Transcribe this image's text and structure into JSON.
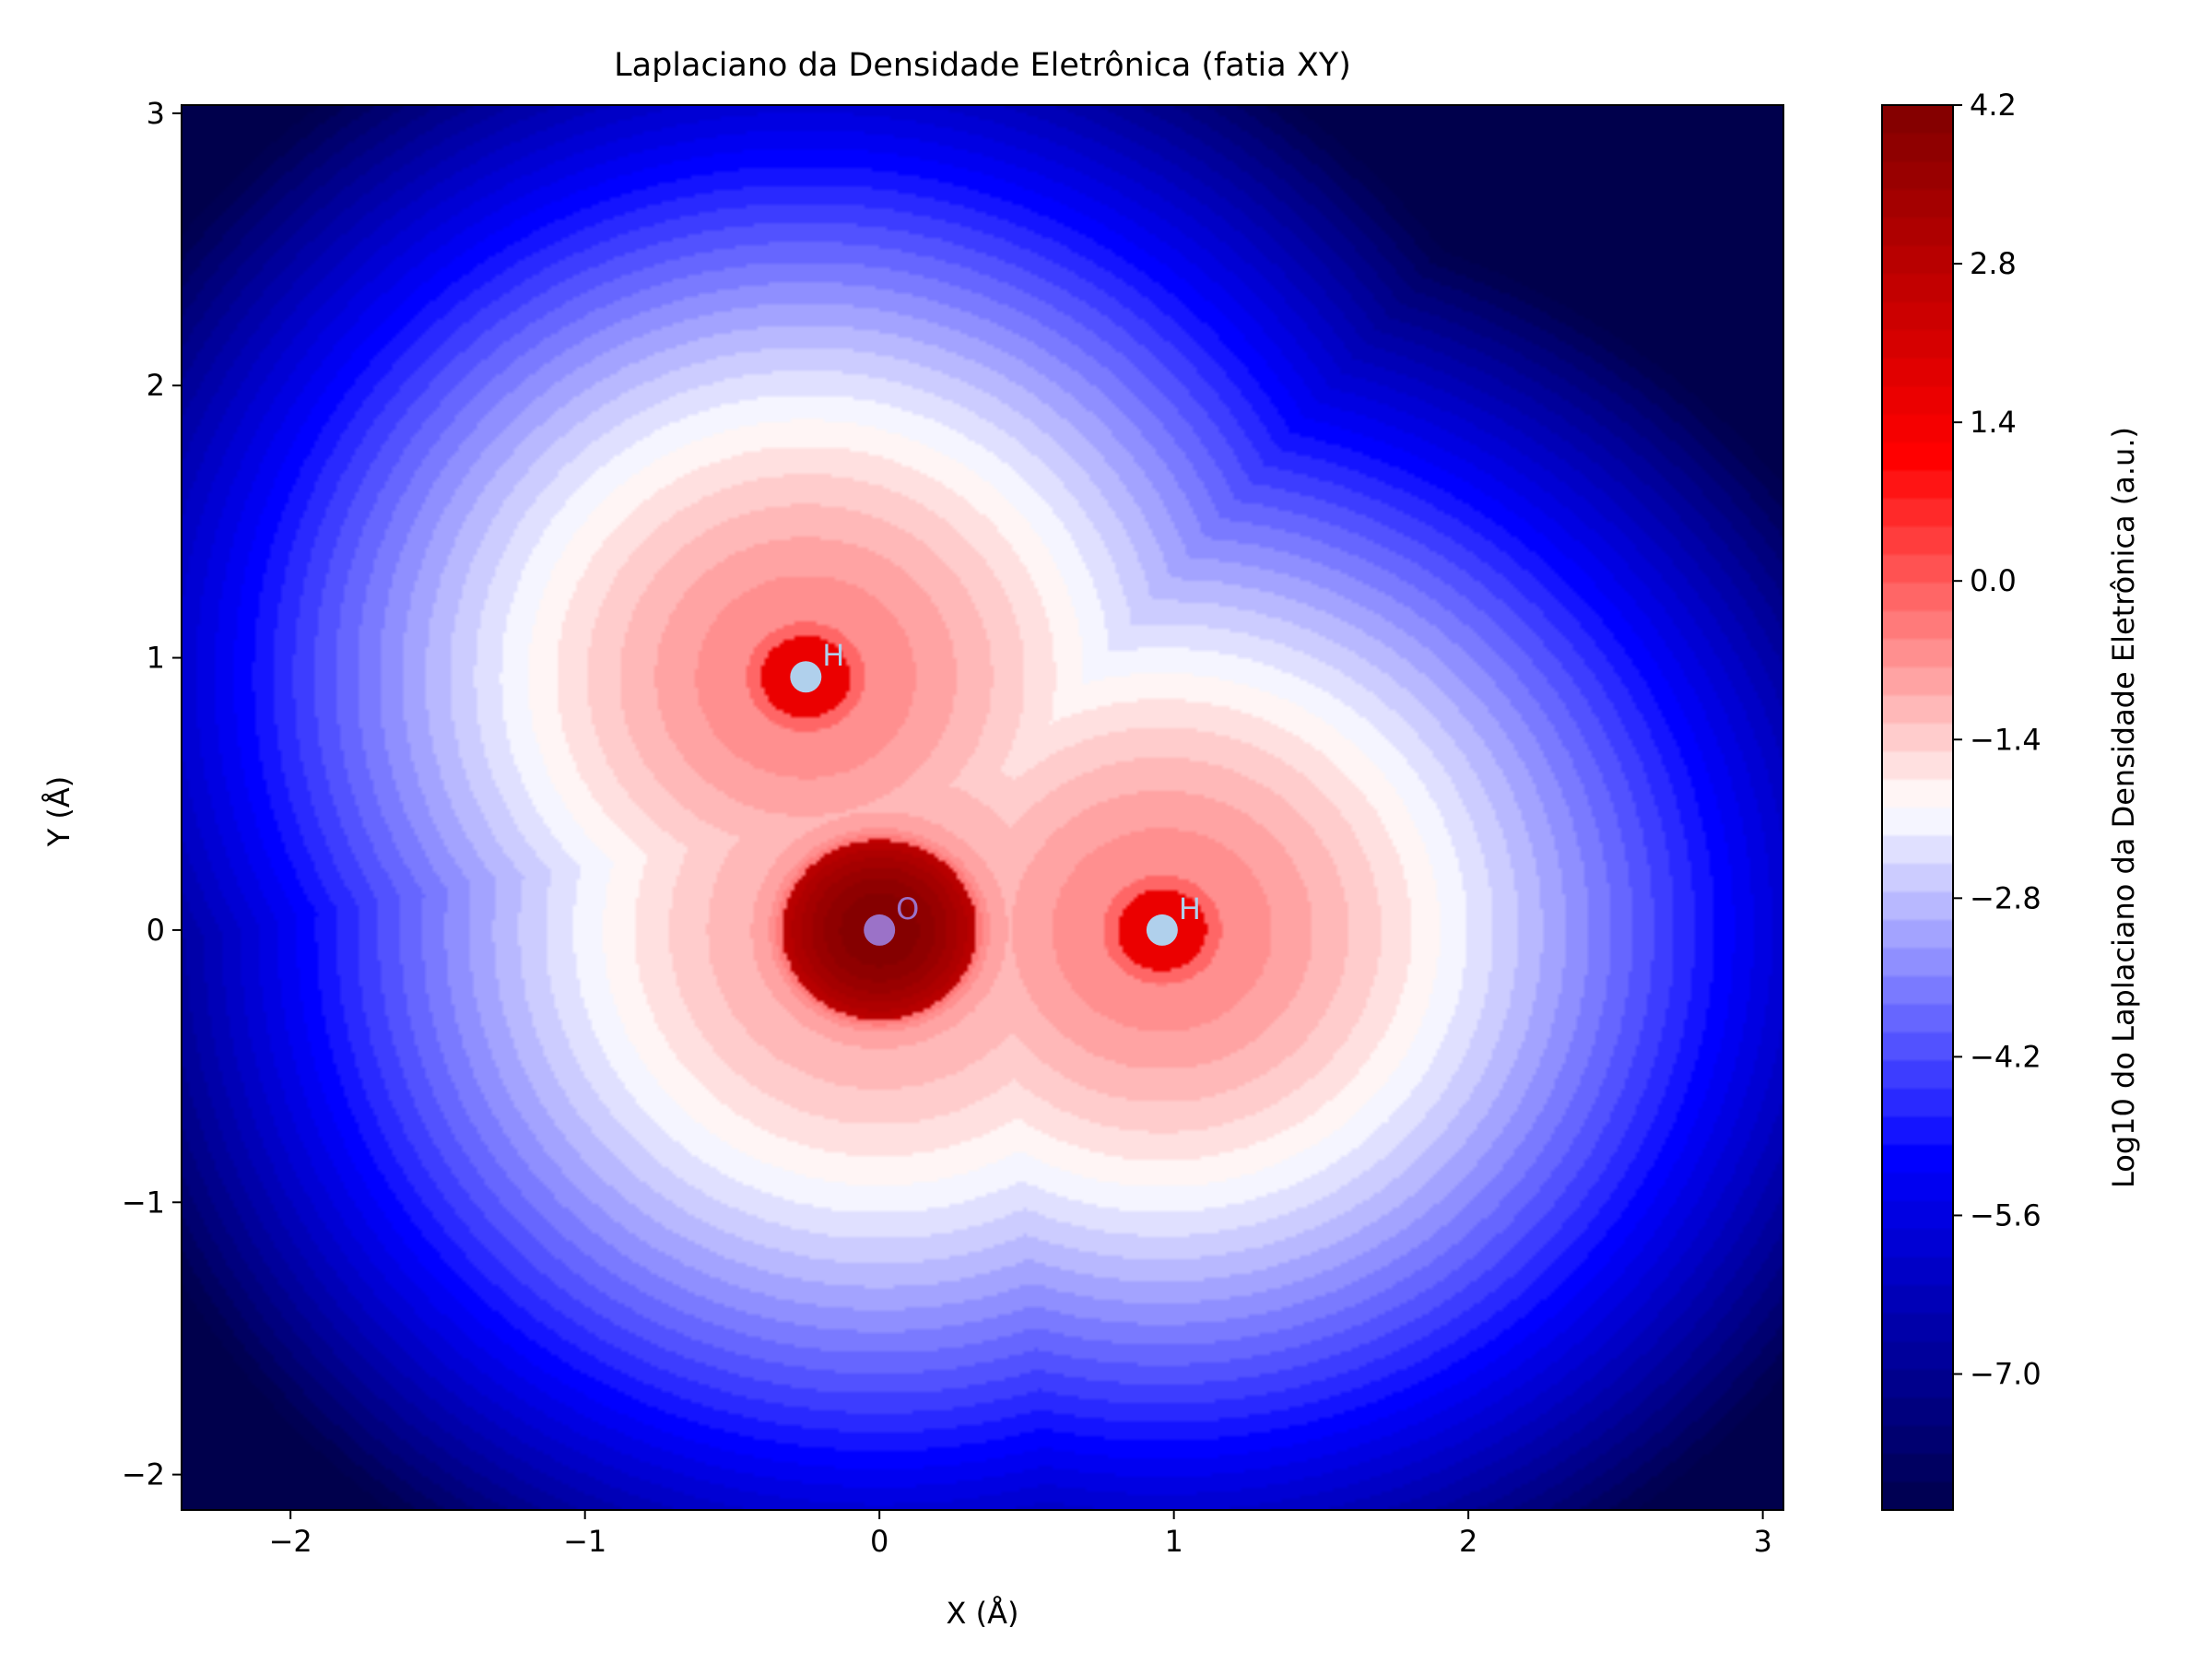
{
  "chart_data": {
    "type": "heatmap",
    "title": "Laplaciano da Densidade Eletrônica (fatia XY)",
    "xlabel": "X (Å)",
    "ylabel": "Y (Å)",
    "xlim": [
      -2.37,
      3.07
    ],
    "ylim": [
      -2.13,
      3.03
    ],
    "xticks": [
      {
        "value": -2,
        "label": "−2"
      },
      {
        "value": -1,
        "label": "−1"
      },
      {
        "value": 0,
        "label": "0"
      },
      {
        "value": 1,
        "label": "1"
      },
      {
        "value": 2,
        "label": "2"
      },
      {
        "value": 3,
        "label": "3"
      }
    ],
    "yticks": [
      {
        "value": -2,
        "label": "−2"
      },
      {
        "value": -1,
        "label": "−1"
      },
      {
        "value": 0,
        "label": "0"
      },
      {
        "value": 1,
        "label": "1"
      },
      {
        "value": 2,
        "label": "2"
      },
      {
        "value": 3,
        "label": "3"
      }
    ],
    "colorbar": {
      "label": "Log10 do Laplaciano da Densidade Eletrônica (a.u.)",
      "range": [
        -8.2,
        4.2
      ],
      "colormap": "seismic",
      "levels": 50,
      "ticks": [
        {
          "value": 4.2,
          "label": "4.2"
        },
        {
          "value": 2.8,
          "label": "2.8"
        },
        {
          "value": 1.4,
          "label": "1.4"
        },
        {
          "value": 0.0,
          "label": "0.0"
        },
        {
          "value": -1.4,
          "label": "−1.4"
        },
        {
          "value": -2.8,
          "label": "−2.8"
        },
        {
          "value": -4.2,
          "label": "−4.2"
        },
        {
          "value": -5.6,
          "label": "−5.6"
        },
        {
          "value": -7.0,
          "label": "−7.0"
        }
      ]
    },
    "atoms": [
      {
        "symbol": "O",
        "x": 0.0,
        "y": 0.0,
        "color": "#9b72c8"
      },
      {
        "symbol": "H",
        "x": 0.96,
        "y": 0.0,
        "color": "#b0d0ec"
      },
      {
        "symbol": "H",
        "x": -0.25,
        "y": 0.93,
        "color": "#b0d0ec"
      }
    ],
    "grid": false,
    "legend": "none"
  }
}
